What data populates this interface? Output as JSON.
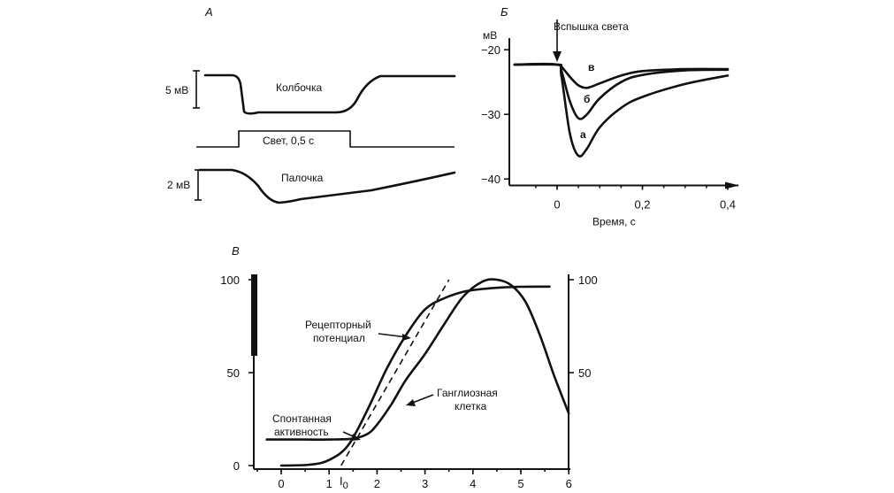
{
  "panels": {
    "a": {
      "letter": "А",
      "cone_label": "Колбочка",
      "cone_scale": "5 мВ",
      "light_label": "Свет, 0,5 с",
      "rod_label": "Палочка",
      "rod_scale": "2 мВ"
    },
    "b": {
      "letter": "Б",
      "flash_label": "Вспышка света",
      "curve_labels": [
        "в",
        "б",
        "а"
      ]
    },
    "c": {
      "letter": "В",
      "receptor_label_1": "Рецепторный",
      "receptor_label_2": "потенциал",
      "ganglion_label_1": "Ганглиозная",
      "ganglion_label_2": "клетка",
      "spont_label_1": "Спонтанная",
      "spont_label_2": "активность",
      "threshold_label": "I",
      "threshold_sub": "0"
    }
  },
  "chart_data": [
    {
      "type": "line",
      "panel": "А",
      "title": "",
      "series": [
        {
          "name": "Колбочка",
          "x": [
            0,
            0.08,
            0.1,
            0.2,
            0.45,
            0.55,
            0.6,
            0.75,
            1.0
          ],
          "values": [
            0,
            0,
            -5.4,
            -5.2,
            -5.0,
            -4.6,
            -2.5,
            0,
            0
          ]
        },
        {
          "name": "Свет, 0,5 с",
          "x": [
            0,
            0.1,
            0.1,
            0.6,
            0.6,
            1.0
          ],
          "values": [
            0,
            0,
            1,
            1,
            0,
            0
          ]
        },
        {
          "name": "Палочка",
          "x": [
            0,
            0.15,
            0.25,
            0.35,
            0.5,
            0.65,
            0.8,
            1.0
          ],
          "values": [
            0,
            -0.2,
            -1.3,
            -2.2,
            -1.9,
            -1.6,
            -1.1,
            -0.4
          ]
        }
      ]
    },
    {
      "type": "line",
      "panel": "Б",
      "ylabel": "мВ",
      "xlabel": "Время, с",
      "xlim": [
        -0.1,
        0.4
      ],
      "ylim": [
        -41,
        -18
      ],
      "xticks": [
        "0",
        "0,2",
        "0,4"
      ],
      "yticks": [
        "−20",
        "−30",
        "−40"
      ],
      "series": [
        {
          "name": "а",
          "x": [
            -0.1,
            0,
            0.01,
            0.03,
            0.05,
            0.07,
            0.1,
            0.15,
            0.2,
            0.3,
            0.4
          ],
          "values": [
            -22.3,
            -22.3,
            -24,
            -33,
            -36.4,
            -35.3,
            -32,
            -29,
            -27.3,
            -25.3,
            -24
          ]
        },
        {
          "name": "б",
          "x": [
            -0.1,
            0,
            0.01,
            0.03,
            0.05,
            0.07,
            0.1,
            0.15,
            0.2,
            0.3,
            0.4
          ],
          "values": [
            -22.3,
            -22.3,
            -23.2,
            -28,
            -30.6,
            -30,
            -27.5,
            -25,
            -23.9,
            -23.2,
            -23.1
          ]
        },
        {
          "name": "в",
          "x": [
            -0.1,
            0,
            0.01,
            0.03,
            0.05,
            0.07,
            0.1,
            0.15,
            0.2,
            0.3,
            0.4
          ],
          "values": [
            -22.3,
            -22.3,
            -22.6,
            -24.2,
            -25.5,
            -25.9,
            -25.2,
            -24,
            -23.3,
            -23,
            -23
          ]
        }
      ]
    },
    {
      "type": "line",
      "panel": "В",
      "xlim": [
        -0.5,
        6
      ],
      "ylim": [
        0,
        100
      ],
      "xticks": [
        "0",
        "1",
        "2",
        "3",
        "4",
        "5",
        "6"
      ],
      "yticks_left": [
        "0",
        "50",
        "100"
      ],
      "yticks_right": [
        "50",
        "100"
      ],
      "series": [
        {
          "name": "Рецепторный потенциал",
          "x": [
            0,
            0.6,
            1.0,
            1.4,
            1.8,
            2.2,
            2.6,
            3.0,
            3.4,
            3.8,
            4.2,
            4.6,
            5.0,
            5.6
          ],
          "values": [
            0,
            0.5,
            3,
            11,
            30,
            52,
            70,
            84,
            90,
            93.5,
            95,
            95.8,
            96.2,
            96.3
          ]
        },
        {
          "name": "Ганглиозная клетка",
          "x": [
            -0.3,
            0.5,
            1.0,
            1.5,
            1.8,
            2.0,
            2.3,
            2.6,
            3.0,
            3.4,
            3.8,
            4.2,
            4.5,
            4.8,
            5.1,
            5.4,
            5.7,
            6.0
          ],
          "values": [
            14,
            14,
            14,
            14.5,
            17,
            22,
            33,
            46,
            60,
            76,
            91,
            99,
            100,
            97,
            88,
            70,
            48,
            28
          ]
        },
        {
          "name": "dashed",
          "x": [
            1.25,
            3.5
          ],
          "values": [
            0,
            100
          ]
        }
      ]
    }
  ]
}
